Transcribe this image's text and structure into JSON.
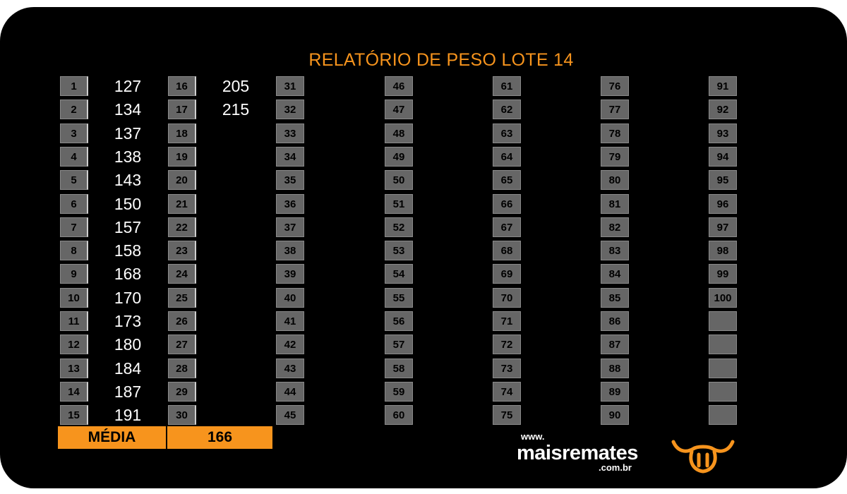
{
  "title": "RELATÓRIO DE PESO LOTE  14",
  "weights": [
    "127",
    "134",
    "137",
    "138",
    "143",
    "150",
    "157",
    "158",
    "168",
    "170",
    "173",
    "180",
    "184",
    "187",
    "191",
    "205",
    "215"
  ],
  "media": {
    "label": "MÉDIA",
    "value": "166"
  },
  "max_index": 100,
  "logo": {
    "www": "www.",
    "name": "maisremates",
    "domain": ".com.br",
    "icon": "bull-head-icon"
  },
  "colors": {
    "accent": "#f7941d",
    "cell": "#666666",
    "background": "#000000"
  }
}
